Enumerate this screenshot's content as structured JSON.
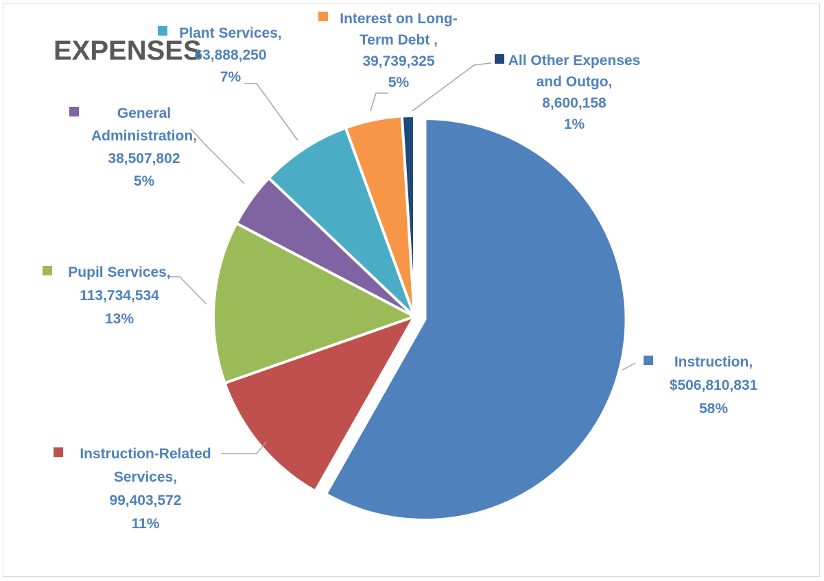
{
  "chart_data": {
    "type": "pie",
    "title": "EXPENSES",
    "series": [
      {
        "name": "",
        "slices": [
          {
            "name": "Instruction",
            "value": 506810831,
            "value_label": "$506,810,831",
            "percent_label": "58%",
            "color": "#4f81bd",
            "label_color": "#4f81bd",
            "exploded": true
          },
          {
            "name": "Instruction-Related Services",
            "value": 99403572,
            "value_label": "99,403,572",
            "percent_label": "11%",
            "color": "#c0504d",
            "label_color": "#4f81bd",
            "exploded": false
          },
          {
            "name": "Pupil Services",
            "value": 113734534,
            "value_label": "113,734,534",
            "percent_label": "13%",
            "color": "#9bbb59",
            "label_color": "#4f81bd",
            "exploded": false
          },
          {
            "name": "General Administration",
            "value": 38507802,
            "value_label": "38,507,802",
            "percent_label": "5%",
            "color": "#8064a2",
            "label_color": "#4f81bd",
            "exploded": false
          },
          {
            "name": "Plant Services",
            "value": 63888250,
            "value_label": "63,888,250",
            "percent_label": "7%",
            "color": "#4bacc6",
            "label_color": "#4f81bd",
            "exploded": false
          },
          {
            "name": "Interest on Long-Term Debt",
            "value": 39739325,
            "value_label": "39,739,325",
            "percent_label": "5%",
            "color": "#f79646",
            "label_color": "#4f81bd",
            "exploded": false
          },
          {
            "name": "All Other Expenses and Outgo",
            "value": 8600158,
            "value_label": "8,600,158",
            "percent_label": "1%",
            "color": "#1f497d",
            "label_color": "#4f81bd",
            "exploded": false
          }
        ]
      }
    ],
    "labels": [
      {
        "lines": [
          "Instruction,",
          "$506,810,831",
          "58%"
        ]
      },
      {
        "lines": [
          "Instruction-Related",
          "Services,",
          "99,403,572",
          "11%"
        ]
      },
      {
        "lines": [
          "Pupil Services,",
          "113,734,534",
          "13%"
        ]
      },
      {
        "lines": [
          "General",
          "Administration,",
          "38,507,802",
          "5%"
        ]
      },
      {
        "lines": [
          "Plant Services,",
          "63,888,250",
          "7%"
        ]
      },
      {
        "lines": [
          "Interest on Long-",
          "Term Debt ,",
          "39,739,325",
          "5%"
        ]
      },
      {
        "lines": [
          "All Other Expenses",
          "and Outgo,",
          "8,600,158",
          "1%"
        ]
      }
    ],
    "legend": "none",
    "label_style": "category, value, percentage"
  }
}
